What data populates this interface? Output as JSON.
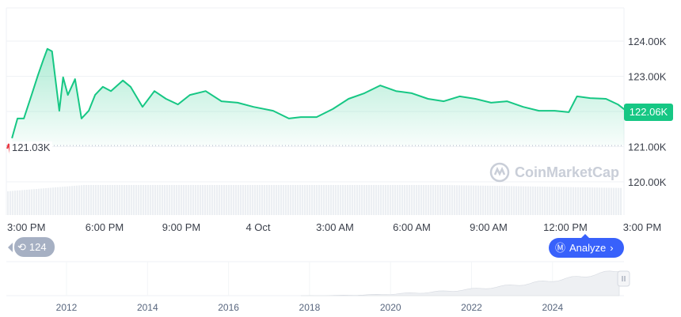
{
  "chart_data": {
    "type": "area",
    "y_ticks": [
      "124.00K",
      "123.00K",
      "122.00K",
      "121.00K",
      "120.00K"
    ],
    "y_tick_values": [
      124,
      123,
      122,
      121,
      120
    ],
    "ylim": [
      119.4,
      124.8
    ],
    "x_ticks": [
      "3:00 PM",
      "6:00 PM",
      "9:00 PM",
      "4 Oct",
      "3:00 AM",
      "6:00 AM",
      "9:00 AM",
      "12:00 PM",
      "3:00 PM"
    ],
    "x_tick_times": [
      "3 Oct 15:00",
      "3 Oct 18:00",
      "3 Oct 21:00",
      "4 Oct 00:00",
      "4 Oct 03:00",
      "4 Oct 06:00",
      "4 Oct 09:00",
      "4 Oct 12:00",
      "4 Oct 15:00"
    ],
    "unit": "K",
    "grid": true,
    "series": [
      {
        "color": "#16c784",
        "points": [
          [
            "3 Oct 14:23",
            121.24
          ],
          [
            "3 Oct 14:36",
            121.8
          ],
          [
            "3 Oct 14:51",
            121.8
          ],
          [
            "3 Oct 15:09",
            122.47
          ],
          [
            "3 Oct 15:24",
            123.03
          ],
          [
            "3 Oct 15:37",
            123.48
          ],
          [
            "3 Oct 15:46",
            123.78
          ],
          [
            "3 Oct 15:57",
            123.71
          ],
          [
            "3 Oct 16:05",
            122.92
          ],
          [
            "3 Oct 16:14",
            122.02
          ],
          [
            "3 Oct 16:23",
            122.97
          ],
          [
            "3 Oct 16:34",
            122.47
          ],
          [
            "3 Oct 16:51",
            122.92
          ],
          [
            "3 Oct 17:06",
            121.8
          ],
          [
            "3 Oct 17:23",
            122.02
          ],
          [
            "3 Oct 17:38",
            122.47
          ],
          [
            "3 Oct 17:56",
            122.7
          ],
          [
            "3 Oct 18:15",
            122.58
          ],
          [
            "3 Oct 18:43",
            122.88
          ],
          [
            "3 Oct 19:01",
            122.7
          ],
          [
            "3 Oct 19:29",
            122.13
          ],
          [
            "3 Oct 19:57",
            122.58
          ],
          [
            "3 Oct 20:24",
            122.36
          ],
          [
            "3 Oct 20:52",
            122.2
          ],
          [
            "3 Oct 21:20",
            122.47
          ],
          [
            "3 Oct 21:57",
            122.58
          ],
          [
            "3 Oct 22:34",
            122.29
          ],
          [
            "3 Oct 23:12",
            122.25
          ],
          [
            "3 Oct 23:49",
            122.13
          ],
          [
            "4 Oct 00:35",
            122.02
          ],
          [
            "4 Oct 01:12",
            121.8
          ],
          [
            "4 Oct 01:40",
            121.84
          ],
          [
            "4 Oct 02:17",
            121.84
          ],
          [
            "4 Oct 02:55",
            122.07
          ],
          [
            "4 Oct 03:32",
            122.36
          ],
          [
            "4 Oct 04:09",
            122.52
          ],
          [
            "4 Oct 04:46",
            122.74
          ],
          [
            "4 Oct 05:23",
            122.58
          ],
          [
            "4 Oct 06:00",
            122.52
          ],
          [
            "4 Oct 06:38",
            122.36
          ],
          [
            "4 Oct 07:15",
            122.29
          ],
          [
            "4 Oct 07:52",
            122.43
          ],
          [
            "4 Oct 08:29",
            122.36
          ],
          [
            "4 Oct 09:06",
            122.25
          ],
          [
            "4 Oct 09:43",
            122.29
          ],
          [
            "4 Oct 10:21",
            122.13
          ],
          [
            "4 Oct 10:58",
            122.02
          ],
          [
            "4 Oct 11:35",
            122.02
          ],
          [
            "4 Oct 12:08",
            121.98
          ],
          [
            "4 Oct 12:27",
            122.43
          ],
          [
            "4 Oct 12:58",
            122.38
          ],
          [
            "4 Oct 13:35",
            122.36
          ],
          [
            "4 Oct 14:03",
            122.2
          ],
          [
            "4 Oct 14:18",
            122.06
          ]
        ]
      }
    ],
    "open_price": 121.03,
    "open_label": "121.03K",
    "current_label": "122.06K",
    "down_color": "#ea3943",
    "navigator_years": [
      "2012",
      "2014",
      "2016",
      "2018",
      "2020",
      "2022",
      "2024"
    ]
  },
  "history_badge": "124",
  "analyze_label": "Analyze",
  "watermark": "CoinMarketCap",
  "colors": {
    "accent": "#3861fb",
    "up": "#16c784"
  }
}
